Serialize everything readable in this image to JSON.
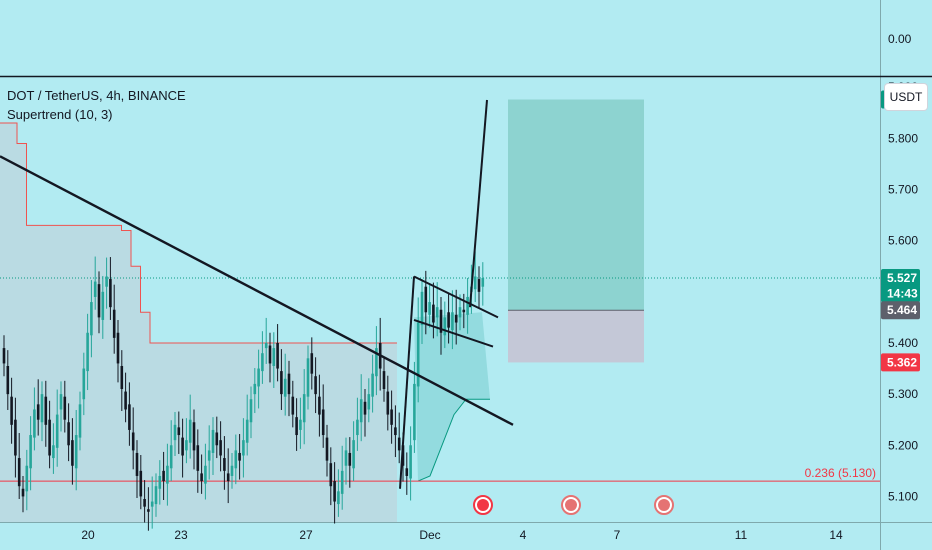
{
  "header": {
    "symbol": "DOT / TetherUS, 4h, BINANCE",
    "indicator": "Supertrend (10, 3)",
    "currency": "USDT"
  },
  "colors": {
    "background": "#b2ebf2",
    "up": "#26a69a",
    "down": "#131722",
    "supertrend": "#ef5350",
    "supertrend_up": "#089981",
    "fib": "#f23645",
    "target_zone": "#80cbc4",
    "stop_zone": "#c5c4d4",
    "trendline": "#131722"
  },
  "chart_data": {
    "type": "candlestick",
    "x_ticks": [
      "20",
      "23",
      "27",
      "Dec",
      "4",
      "7",
      "11",
      "14"
    ],
    "top_pane": {
      "tick": "0.00"
    },
    "y_ticks": [
      "5.900",
      "5.800",
      "5.700",
      "5.600",
      "5.400",
      "5.300",
      "5.200",
      "5.100"
    ],
    "ylim": [
      5.05,
      5.92
    ],
    "price_labels": [
      {
        "name": "target",
        "text": "5.876",
        "value": 5.876,
        "color": "#089981"
      },
      {
        "name": "last-price",
        "text": "5.527",
        "value": 5.527,
        "color": "#089981"
      },
      {
        "name": "countdown",
        "text": "14:43",
        "value": 5.497,
        "color": "#089981"
      },
      {
        "name": "entry",
        "text": "5.464",
        "value": 5.464,
        "color": "#5d606b"
      },
      {
        "name": "stop",
        "text": "5.362",
        "value": 5.362,
        "color": "#f23645"
      }
    ],
    "fib_level": {
      "label": "0.236 (5.130)",
      "value": 5.13
    },
    "closes": [
      5.36,
      5.3,
      5.24,
      5.18,
      5.12,
      5.1,
      5.16,
      5.22,
      5.27,
      5.25,
      5.3,
      5.24,
      5.18,
      5.2,
      5.26,
      5.3,
      5.25,
      5.2,
      5.16,
      5.22,
      5.28,
      5.35,
      5.42,
      5.48,
      5.52,
      5.45,
      5.5,
      5.53,
      5.47,
      5.41,
      5.36,
      5.31,
      5.27,
      5.23,
      5.19,
      5.14,
      5.1,
      5.08,
      5.07,
      5.09,
      5.12,
      5.14,
      5.13,
      5.16,
      5.2,
      5.24,
      5.22,
      5.18,
      5.21,
      5.25,
      5.19,
      5.15,
      5.13,
      5.16,
      5.19,
      5.23,
      5.2,
      5.18,
      5.15,
      5.13,
      5.16,
      5.19,
      5.17,
      5.21,
      5.25,
      5.29,
      5.32,
      5.35,
      5.38,
      5.4,
      5.36,
      5.39,
      5.35,
      5.3,
      5.33,
      5.3,
      5.26,
      5.22,
      5.25,
      5.3,
      5.37,
      5.34,
      5.3,
      5.26,
      5.22,
      5.17,
      5.12,
      5.09,
      5.11,
      5.15,
      5.19,
      5.16,
      5.21,
      5.25,
      5.29,
      5.26,
      5.3,
      5.34,
      5.39,
      5.35,
      5.31,
      5.26,
      5.24,
      5.22,
      5.19,
      5.16,
      5.14,
      5.2,
      5.32,
      5.44,
      5.5,
      5.46,
      5.48,
      5.44,
      5.47,
      5.42,
      5.45,
      5.43,
      5.46,
      5.44,
      5.47,
      5.46,
      5.49,
      5.51,
      5.53,
      5.5,
      5.527
    ],
    "supertrend": [
      5.83,
      5.83,
      5.79,
      5.63,
      5.63,
      5.63,
      5.63,
      5.63,
      5.63,
      5.63,
      5.63,
      5.63,
      5.63,
      5.62,
      5.55,
      5.46,
      5.4,
      5.4,
      5.4,
      5.4,
      5.4,
      5.4,
      5.4,
      5.4,
      5.4,
      5.4,
      5.4,
      5.4,
      5.4,
      5.4,
      5.4,
      5.4,
      5.4,
      5.4,
      5.4,
      5.4,
      5.4,
      5.4,
      5.4,
      5.4,
      5.4,
      5.4
    ],
    "supertrend_up": [
      5.13,
      5.14,
      5.2,
      5.26,
      5.29,
      5.29
    ]
  }
}
